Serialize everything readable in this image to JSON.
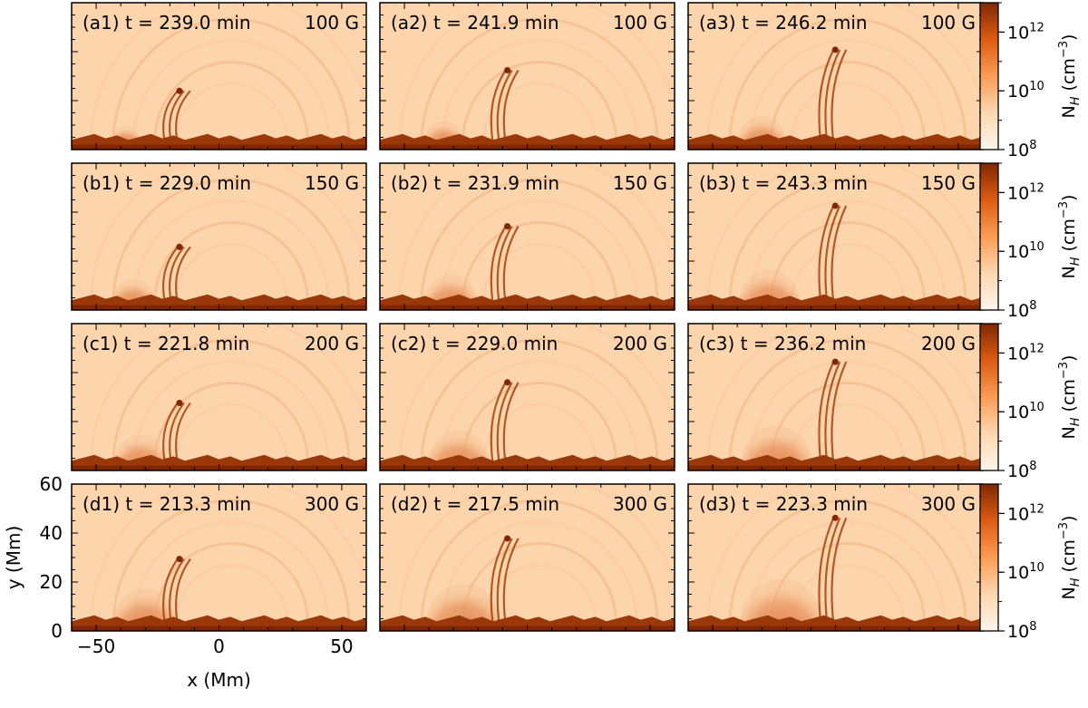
{
  "chart_data": {
    "type": "heatmap",
    "layout": {
      "rows": 4,
      "cols": 3
    },
    "x": {
      "label": "x",
      "unit": "(Mm)",
      "lim": [
        -60,
        60
      ],
      "ticks": [
        -50,
        0,
        50
      ]
    },
    "y": {
      "label": "y",
      "unit": "(Mm)",
      "lim": [
        0,
        60
      ],
      "ticks": [
        0,
        20,
        40,
        60
      ]
    },
    "colorbar": {
      "label": "N",
      "sub": "H",
      "unit_prefix": "(cm",
      "unit_exp": "−3",
      "unit_suffix": ")",
      "scale": "log",
      "range": [
        100000000.0,
        10000000000000.0
      ],
      "ticks": [
        {
          "base": "10",
          "exp": "8",
          "value": 100000000.0
        },
        {
          "base": "10",
          "exp": "10",
          "value": 10000000000.0
        },
        {
          "base": "10",
          "exp": "12",
          "value": 1000000000000.0
        }
      ],
      "colormap": "Oranges"
    },
    "panels": [
      {
        "id": "(a1)",
        "time": "t = 239.0 min",
        "field": "100 G"
      },
      {
        "id": "(a2)",
        "time": "t = 241.9 min",
        "field": "100 G"
      },
      {
        "id": "(a3)",
        "time": "t = 246.2 min",
        "field": "100 G"
      },
      {
        "id": "(b1)",
        "time": "t = 229.0 min",
        "field": "150 G"
      },
      {
        "id": "(b2)",
        "time": "t = 231.9 min",
        "field": "150 G"
      },
      {
        "id": "(b3)",
        "time": "t = 243.3 min",
        "field": "150 G"
      },
      {
        "id": "(c1)",
        "time": "t = 221.8 min",
        "field": "200 G"
      },
      {
        "id": "(c2)",
        "time": "t = 229.0 min",
        "field": "200 G"
      },
      {
        "id": "(c3)",
        "time": "t = 236.2 min",
        "field": "200 G"
      },
      {
        "id": "(d1)",
        "time": "t = 213.3 min",
        "field": "300 G"
      },
      {
        "id": "(d2)",
        "time": "t = 217.5 min",
        "field": "300 G"
      },
      {
        "id": "(d3)",
        "time": "t = 223.3 min",
        "field": "300 G"
      }
    ]
  }
}
